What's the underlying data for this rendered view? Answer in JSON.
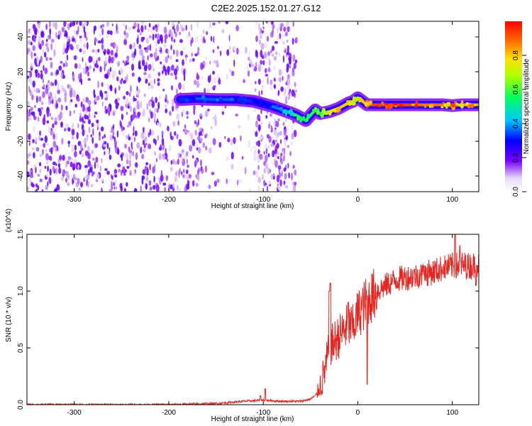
{
  "title": "C2E2.2025.152.01.27.G12",
  "colors": {
    "snr_line": "#e8241f",
    "axis": "#000000",
    "background": "#ffffff"
  },
  "chart_data": [
    {
      "type": "heatmap",
      "name": "spectrogram",
      "xlabel": "Height of straight line (km)",
      "ylabel": "Frequency (Hz)",
      "xlim": [
        -350,
        128
      ],
      "ylim": [
        -49,
        49
      ],
      "x_ticks": [
        -300,
        -200,
        -100,
        0,
        100
      ],
      "x_tick_labels": [
        "-300",
        "-200",
        "-100",
        "0",
        "100"
      ],
      "y_ticks": [
        -40,
        -20,
        0,
        20,
        40
      ],
      "y_tick_labels": [
        "-40",
        "-20",
        "0",
        "20",
        "40"
      ],
      "colorbar": {
        "label": "Normalized spectral amplitude",
        "range": [
          0,
          1
        ],
        "ticks": [
          0.0,
          0.2,
          0.4,
          0.6,
          0.8
        ],
        "tick_labels": [
          "0.0",
          "0.2",
          "0.4",
          "0.6",
          "0.8"
        ],
        "colormap": "white-purple-blue-cyan-green-yellow-red"
      },
      "signal_trace": {
        "x": [
          -188,
          -170,
          -150,
          -130,
          -110,
          -90,
          -75,
          -65,
          -55,
          -45,
          -40,
          -30,
          -20,
          -10,
          -5,
          0,
          10,
          30,
          60,
          90,
          100,
          110,
          128
        ],
        "y": [
          4,
          4.5,
          4,
          4,
          3,
          0,
          -3,
          -5,
          -8,
          -2,
          -4,
          -3,
          -1,
          2,
          3,
          5,
          1,
          1,
          1,
          1,
          0.5,
          1,
          1
        ],
        "amplitude": [
          0.3,
          0.35,
          0.35,
          0.35,
          0.3,
          0.3,
          0.45,
          0.55,
          0.55,
          0.6,
          0.6,
          0.75,
          0.8,
          0.8,
          0.75,
          0.7,
          0.9,
          0.95,
          0.9,
          0.85,
          0.9,
          0.85,
          0.8
        ]
      },
      "noise_region": {
        "x": [
          -350,
          -65
        ],
        "y": [
          -49,
          49
        ],
        "amplitude": "low (0.1-0.2)"
      }
    },
    {
      "type": "line",
      "name": "snr",
      "xlabel": "Height of straight line (km)",
      "ylabel": "SNR (10 * v/v)",
      "multiplier_label": "(x10^4)",
      "xlim": [
        -350,
        128
      ],
      "ylim": [
        0,
        1.5
      ],
      "x_ticks": [
        -300,
        -200,
        -100,
        0,
        100
      ],
      "x_tick_labels": [
        "-300",
        "-200",
        "-100",
        "0",
        "100"
      ],
      "y_ticks": [
        0,
        0.5,
        1.0,
        1.5
      ],
      "y_tick_labels": [
        "0.0",
        "0.5",
        "1.0",
        "1.5"
      ],
      "series": [
        {
          "x": [
            -350,
            -250,
            -200,
            -150,
            -120,
            -100,
            -80,
            -60,
            -50,
            -45,
            -40,
            -35,
            -30,
            -25,
            -20,
            -15,
            -10,
            -5,
            0,
            5,
            10,
            15,
            20,
            30,
            40,
            50,
            60,
            70,
            80,
            90,
            100,
            110,
            120,
            128
          ],
          "y": [
            0.0,
            0.0,
            0.0,
            0.01,
            0.03,
            0.04,
            0.03,
            0.03,
            0.05,
            0.08,
            0.15,
            0.3,
            0.5,
            0.55,
            0.6,
            0.65,
            0.7,
            0.68,
            0.8,
            0.85,
            0.92,
            0.95,
            1.0,
            1.05,
            1.1,
            1.12,
            1.13,
            1.15,
            1.17,
            1.2,
            1.22,
            1.23,
            1.22,
            1.24
          ],
          "spikes": [
            {
              "x": -103,
              "y": 0.08
            },
            {
              "x": -98,
              "y": 0.14
            },
            {
              "x": -30,
              "y": 1.0
            },
            {
              "x": -29,
              "y": 1.07
            },
            {
              "x": -10,
              "y": 0.9
            },
            {
              "x": 10,
              "y": 0.18
            },
            {
              "x": 70,
              "y": 1.22
            },
            {
              "x": 90,
              "y": 1.15
            },
            {
              "x": 103,
              "y": 1.5
            },
            {
              "x": 108,
              "y": 1.4
            },
            {
              "x": 125,
              "y": 1.05
            }
          ]
        }
      ]
    }
  ]
}
